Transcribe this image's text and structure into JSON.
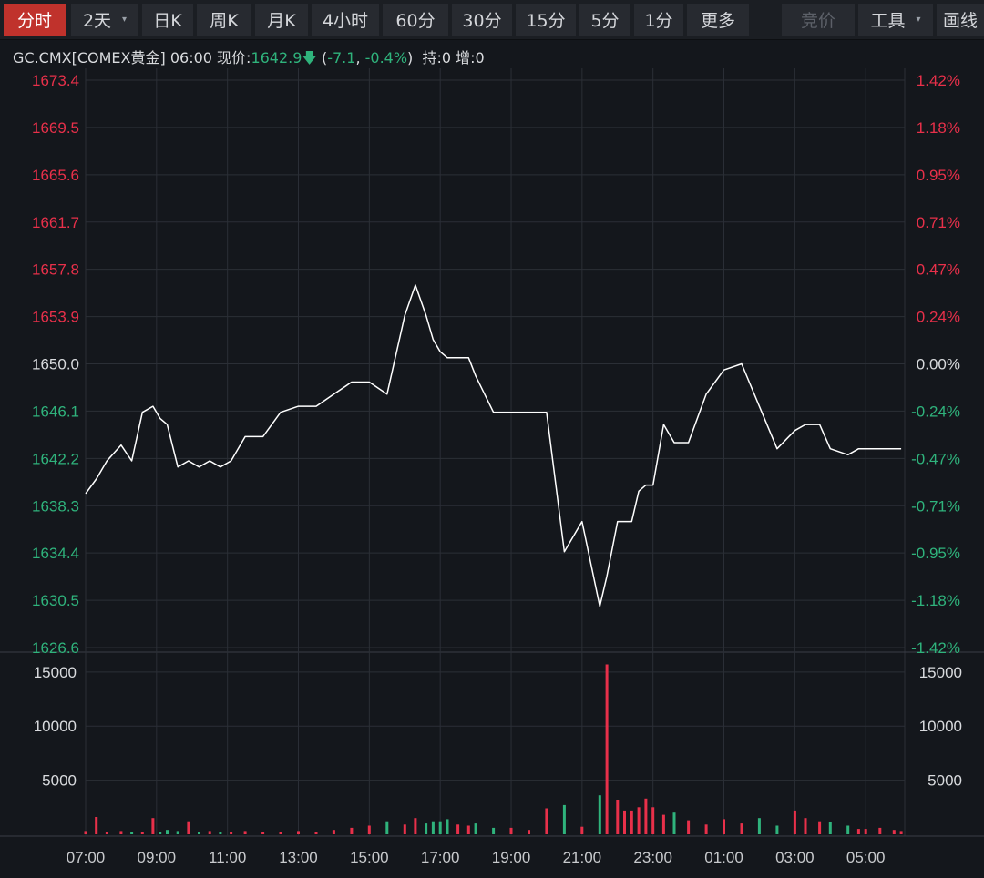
{
  "toolbar": {
    "buttons": [
      {
        "label": "分时",
        "active": true
      },
      {
        "label": "2天",
        "dropdown": true
      },
      {
        "label": "日K"
      },
      {
        "label": "周K"
      },
      {
        "label": "月K"
      },
      {
        "label": "4小时"
      },
      {
        "label": "60分"
      },
      {
        "label": "30分"
      },
      {
        "label": "15分"
      },
      {
        "label": "5分"
      },
      {
        "label": "1分"
      },
      {
        "label": "更多"
      },
      {
        "label": "竞价",
        "disabled": true
      },
      {
        "label": "工具",
        "dropdown": true
      },
      {
        "label": "画线"
      }
    ]
  },
  "quote": {
    "symbol": "GC.CMX[COMEX黄金]",
    "time": "06:00",
    "price_label": "现价:",
    "price": "1642.9",
    "change": "-7.1",
    "change_pct": "-0.4%",
    "hold": "持:0",
    "increase": "增:0"
  },
  "colors": {
    "up": "#e8304a",
    "down": "#2fb37c",
    "neutral": "#d9dbde",
    "line": "#ffffff",
    "grid": "#2b2f36",
    "background": "#14171c",
    "active_tab": "#c0322c"
  },
  "chart_data": {
    "type": "line",
    "ylim": [
      1626.6,
      1673.4
    ],
    "prev_close": 1650.0,
    "price_ticks": [
      "1673.4",
      "1669.5",
      "1665.6",
      "1661.7",
      "1657.8",
      "1653.9",
      "1650.0",
      "1646.1",
      "1642.2",
      "1638.3",
      "1634.4",
      "1630.5",
      "1626.6"
    ],
    "pct_ticks": [
      "1.42%",
      "1.18%",
      "0.95%",
      "0.71%",
      "0.47%",
      "0.24%",
      "0.00%",
      "-0.24%",
      "-0.47%",
      "-0.71%",
      "-0.95%",
      "-1.18%",
      "-1.42%"
    ],
    "x_tick_labels": [
      "07:00",
      "09:00",
      "11:00",
      "13:00",
      "15:00",
      "17:00",
      "19:00",
      "21:00",
      "23:00",
      "01:00",
      "03:00",
      "05:00"
    ],
    "x": [
      7.0,
      7.3,
      7.6,
      8.0,
      8.3,
      8.6,
      8.9,
      9.1,
      9.3,
      9.6,
      9.9,
      10.2,
      10.5,
      10.8,
      11.1,
      11.5,
      12.0,
      12.5,
      13.0,
      13.5,
      14.0,
      14.5,
      15.0,
      15.5,
      16.0,
      16.3,
      16.6,
      16.8,
      17.0,
      17.2,
      17.5,
      17.8,
      18.0,
      18.5,
      19.0,
      19.5,
      20.0,
      20.5,
      21.0,
      21.5,
      21.7,
      22.0,
      22.2,
      22.4,
      22.6,
      22.8,
      23.0,
      23.3,
      23.6,
      24.0,
      24.5,
      25.0,
      25.5,
      26.0,
      26.5,
      27.0,
      27.3,
      27.7,
      28.0,
      28.5,
      28.8,
      29.0,
      29.4,
      29.8,
      30.0
    ],
    "series": [
      {
        "values": [
          1639.3,
          1640.5,
          1642.0,
          1643.3,
          1642.0,
          1646.0,
          1646.5,
          1645.5,
          1645.0,
          1641.5,
          1642.0,
          1641.5,
          1642.0,
          1641.5,
          1642.0,
          1644.0,
          1644.0,
          1646.0,
          1646.5,
          1646.5,
          1647.5,
          1648.5,
          1648.5,
          1647.5,
          1654.0,
          1656.5,
          1654.0,
          1652.0,
          1651.0,
          1650.5,
          1650.5,
          1650.5,
          1649.0,
          1646.0,
          1646.0,
          1646.0,
          1646.0,
          1634.5,
          1637.0,
          1630.0,
          1632.5,
          1637.0,
          1637.0,
          1637.0,
          1639.5,
          1640.0,
          1640.0,
          1645.0,
          1643.5,
          1643.5,
          1647.5,
          1649.5,
          1650.0,
          1646.5,
          1643.0,
          1644.5,
          1645.0,
          1645.0,
          1643.0,
          1642.5,
          1643.0,
          1643.0,
          1643.0,
          1643.0,
          1643.0
        ]
      },
      {
        "name": "volume",
        "ylim": [
          0,
          16500
        ],
        "y_ticks": [
          "15000",
          "10000",
          "5000"
        ],
        "values": [
          300,
          1600,
          200,
          300,
          250,
          200,
          1500,
          200,
          400,
          300,
          1200,
          200,
          300,
          200,
          250,
          300,
          200,
          200,
          300,
          250,
          400,
          600,
          800,
          1200,
          900,
          1500,
          1000,
          1200,
          1200,
          1400,
          900,
          800,
          1000,
          600,
          600,
          400,
          2400,
          2700,
          700,
          3600,
          15700,
          3200,
          2200,
          2200,
          2500,
          3300,
          2500,
          1800,
          2000,
          1300,
          900,
          1400,
          1000,
          1500,
          800,
          2200,
          1500,
          1200,
          1100,
          800,
          500,
          500,
          600,
          400,
          300
        ]
      }
    ]
  }
}
